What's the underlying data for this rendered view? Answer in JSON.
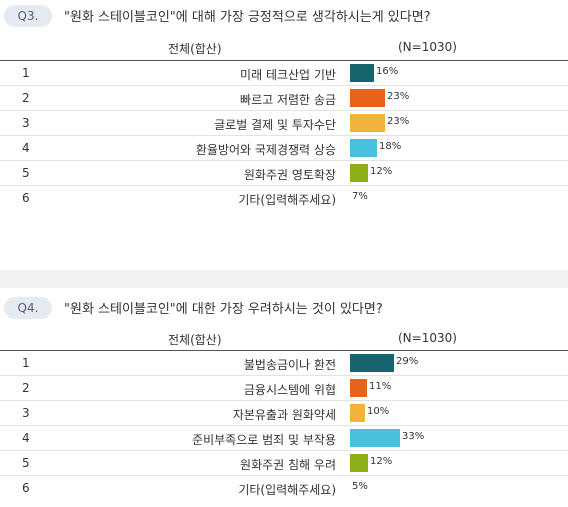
{
  "q3": {
    "badge": "Q3.",
    "question": "\"원화 스테이블코인\"에 대해 가장 긍정적으로 생각하시는게 있다면?",
    "col_total": "전체(합산)",
    "col_n": "(N=1030)"
  },
  "q4": {
    "badge": "Q4.",
    "question": "\"원화 스테이블코인\"에 대한 가장 우려하시는 것이 있다면?",
    "col_total": "전체(합산)",
    "col_n": "(N=1030)"
  },
  "chart_data": [
    {
      "type": "bar",
      "orientation": "horizontal",
      "title": "\"원화 스테이블코인\"에 대해 가장 긍정적으로 생각하시는게 있다면?",
      "ranks": [
        "1",
        "2",
        "3",
        "4",
        "5",
        "6"
      ],
      "categories": [
        "미래 테크산업 기반",
        "빠르고 저렴한 송금",
        "글로벌 결제 및 투자수단",
        "환율방어와 국제경쟁력 상승",
        "원화주권 영토확장",
        "기타(입력해주세요)"
      ],
      "values": [
        16,
        23,
        23,
        18,
        12,
        7
      ],
      "value_labels": [
        "16%",
        "23%",
        "23%",
        "18%",
        "12%",
        "7%"
      ],
      "unit": "%",
      "colors": [
        "#16646e",
        "#e8631a",
        "#f0b43c",
        "#48c0de",
        "#8caf1a",
        null
      ]
    },
    {
      "type": "bar",
      "orientation": "horizontal",
      "title": "\"원화 스테이블코인\"에 대한 가장 우려하시는 것이 있다면?",
      "ranks": [
        "1",
        "2",
        "3",
        "4",
        "5",
        "6"
      ],
      "categories": [
        "불법송금이나 환전",
        "금융시스템에 위협",
        "자본유출과 원화약세",
        "준비부족으로 범죄 및 부작용",
        "원화주권 침해 우려",
        "기타(입력해주세요)"
      ],
      "values": [
        29,
        11,
        10,
        33,
        12,
        5
      ],
      "value_labels": [
        "29%",
        "11%",
        "10%",
        "33%",
        "12%",
        "5%"
      ],
      "unit": "%",
      "colors": [
        "#16646e",
        "#e8631a",
        "#f0b43c",
        "#48c0de",
        "#8caf1a",
        null
      ]
    }
  ]
}
